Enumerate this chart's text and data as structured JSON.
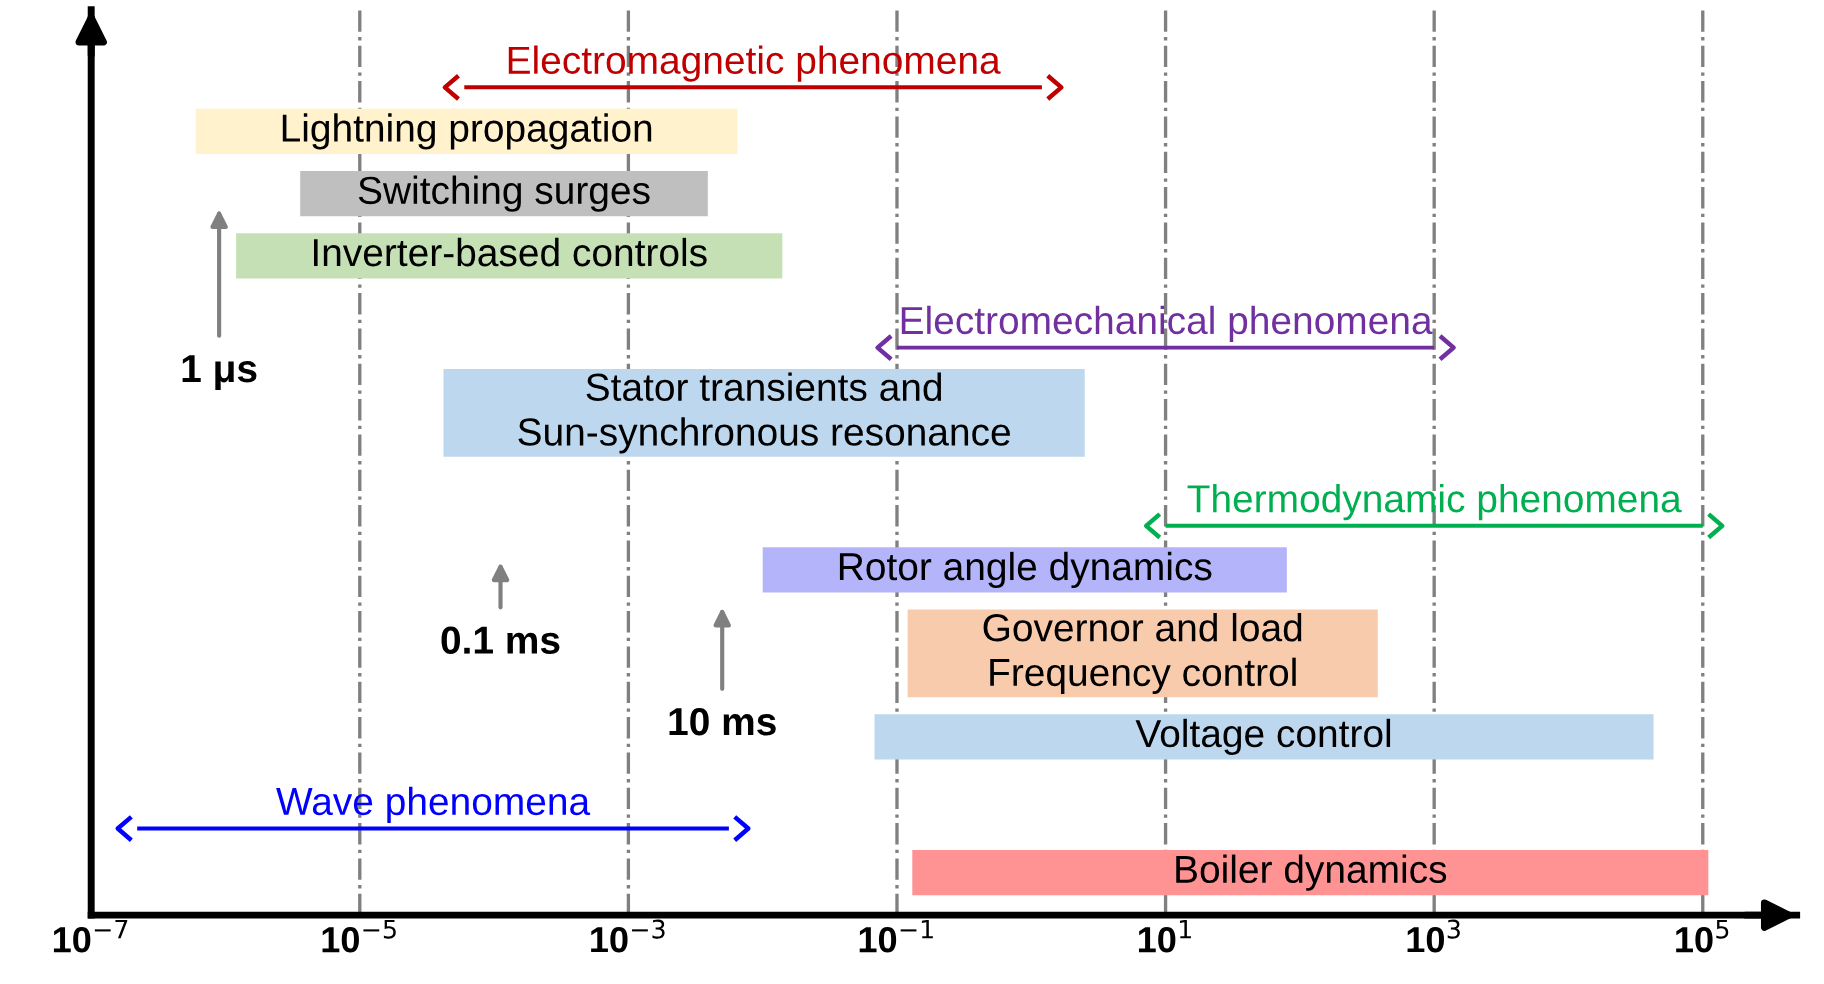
{
  "chart_data": {
    "type": "bar",
    "orientation": "horizontal",
    "log": "x",
    "grid": "x",
    "tick_labels": "x",
    "categories": [
      "Electromagnetic phenomena",
      "Lightning propagation",
      "Switching surges",
      "Inverter-based controls",
      "Electromechanical phenomena",
      "Stator transients and\nSun-synchronous resonance",
      "Thermodynamic phenomena",
      "Rotor angle dynamics",
      "Governor and load\nFrequency control",
      "Voltage control",
      "Wave phenomena",
      "Boiler dynamics"
    ],
    "series": [
      {
        "colors": [
          null,
          "#fff2cc",
          "#bfbfbf",
          "#c5e0b4",
          null,
          "#bdd7ee",
          null,
          "#b4b4fa",
          "#f8cbad",
          "#bdd7ee",
          null,
          "#ff9393"
        ],
        "base": [
          null,
          6e-07,
          3.6e-06,
          1.2e-06,
          null,
          4.2e-05,
          null,
          0.01,
          0.12,
          0.068,
          null,
          0.13
        ],
        "values": [
          null,
          0.0065,
          0.0039,
          0.014,
          null,
          2.5,
          null,
          80,
          380,
          43000,
          null,
          110000
        ]
      },
      {
        "colors": [
          "#c00000",
          null,
          null,
          null,
          "#7030a0",
          null,
          "#00b050",
          null,
          null,
          null,
          "#0000ff",
          null
        ],
        "base": [
          6e-05,
          null,
          null,
          null,
          0.1,
          null,
          10,
          null,
          null,
          null,
          2.2e-07,
          null
        ],
        "values": [
          1.2,
          null,
          null,
          null,
          999.9,
          null,
          99990,
          null,
          null,
          null,
          0.0056,
          null
        ]
      }
    ],
    "annotations": [
      "1 μs",
      "0.1 ms",
      "10 ms"
    ],
    "xlim": [
      1e-07,
      500000.0
    ],
    "xticks": [
      {
        "value": 1e-07,
        "label": "10$^{−7}$"
      },
      {
        "value": 1e-05,
        "label": "10$^{−5}$"
      },
      {
        "value": 0.001,
        "label": "10$^{−3}$"
      },
      {
        "value": 0.1,
        "label": "10$^{−1}$"
      },
      {
        "value": 10,
        "label": "10$^{1}$"
      },
      {
        "value": 1000,
        "label": "10$^{3}$"
      },
      {
        "value": 100000,
        "label": "10$^{5}$"
      }
    ]
  }
}
